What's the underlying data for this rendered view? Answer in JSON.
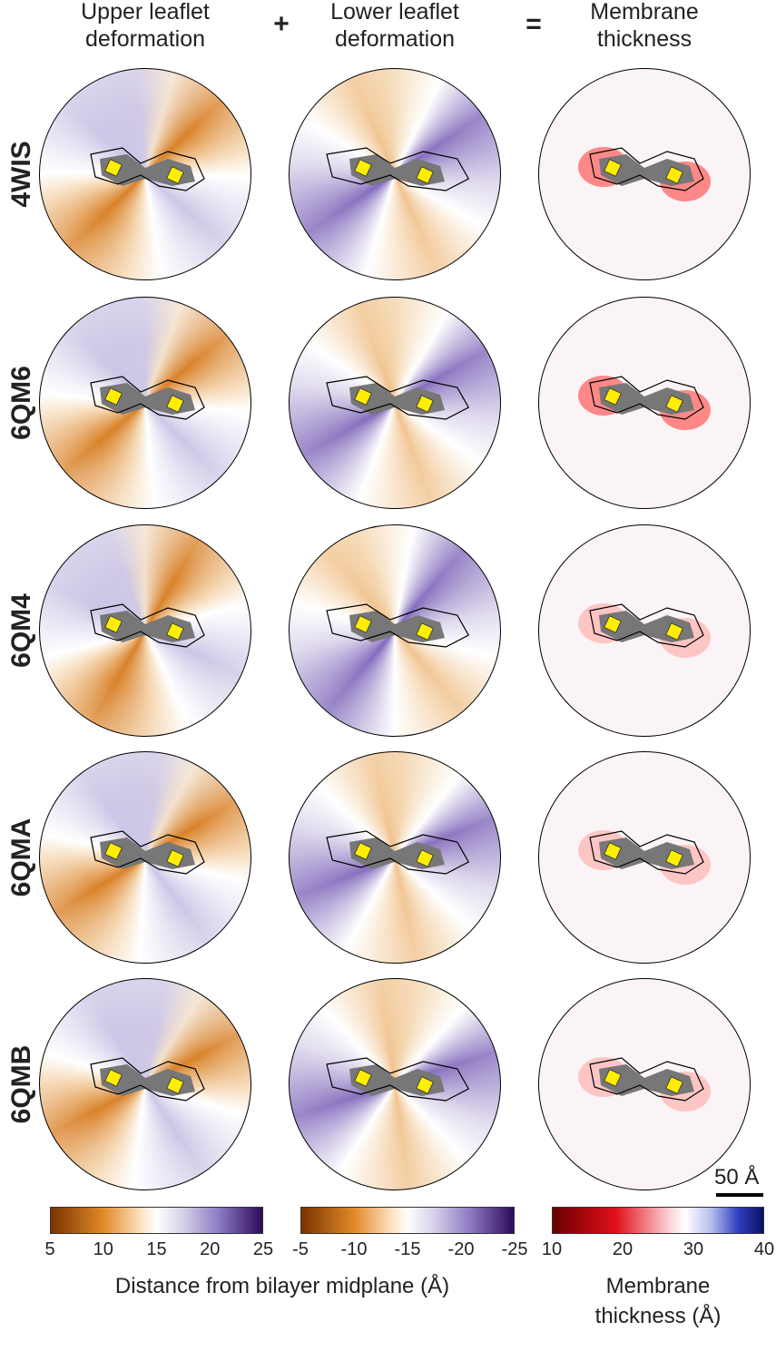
{
  "header": {
    "columns": [
      [
        "Upper leaflet",
        "deformation"
      ],
      [
        "Lower leaflet",
        "deformation"
      ],
      [
        "Membrane",
        "thickness"
      ]
    ],
    "operators": [
      "+",
      "="
    ]
  },
  "rows": [
    "4WIS",
    "6QM6",
    "6QM4",
    "6QMA",
    "6QMB"
  ],
  "scale_bar": "50 Å",
  "colorbars": [
    {
      "ticks": [
        5,
        10,
        15,
        20,
        25
      ]
    },
    {
      "ticks": [
        -5,
        -10,
        -15,
        -20,
        -25
      ]
    },
    {
      "ticks": [
        10,
        20,
        30,
        40
      ]
    }
  ],
  "colorbar_labels": {
    "distance": "Distance from bilayer midplane (Å)",
    "thickness": [
      "Membrane",
      "thickness (Å)"
    ]
  }
}
